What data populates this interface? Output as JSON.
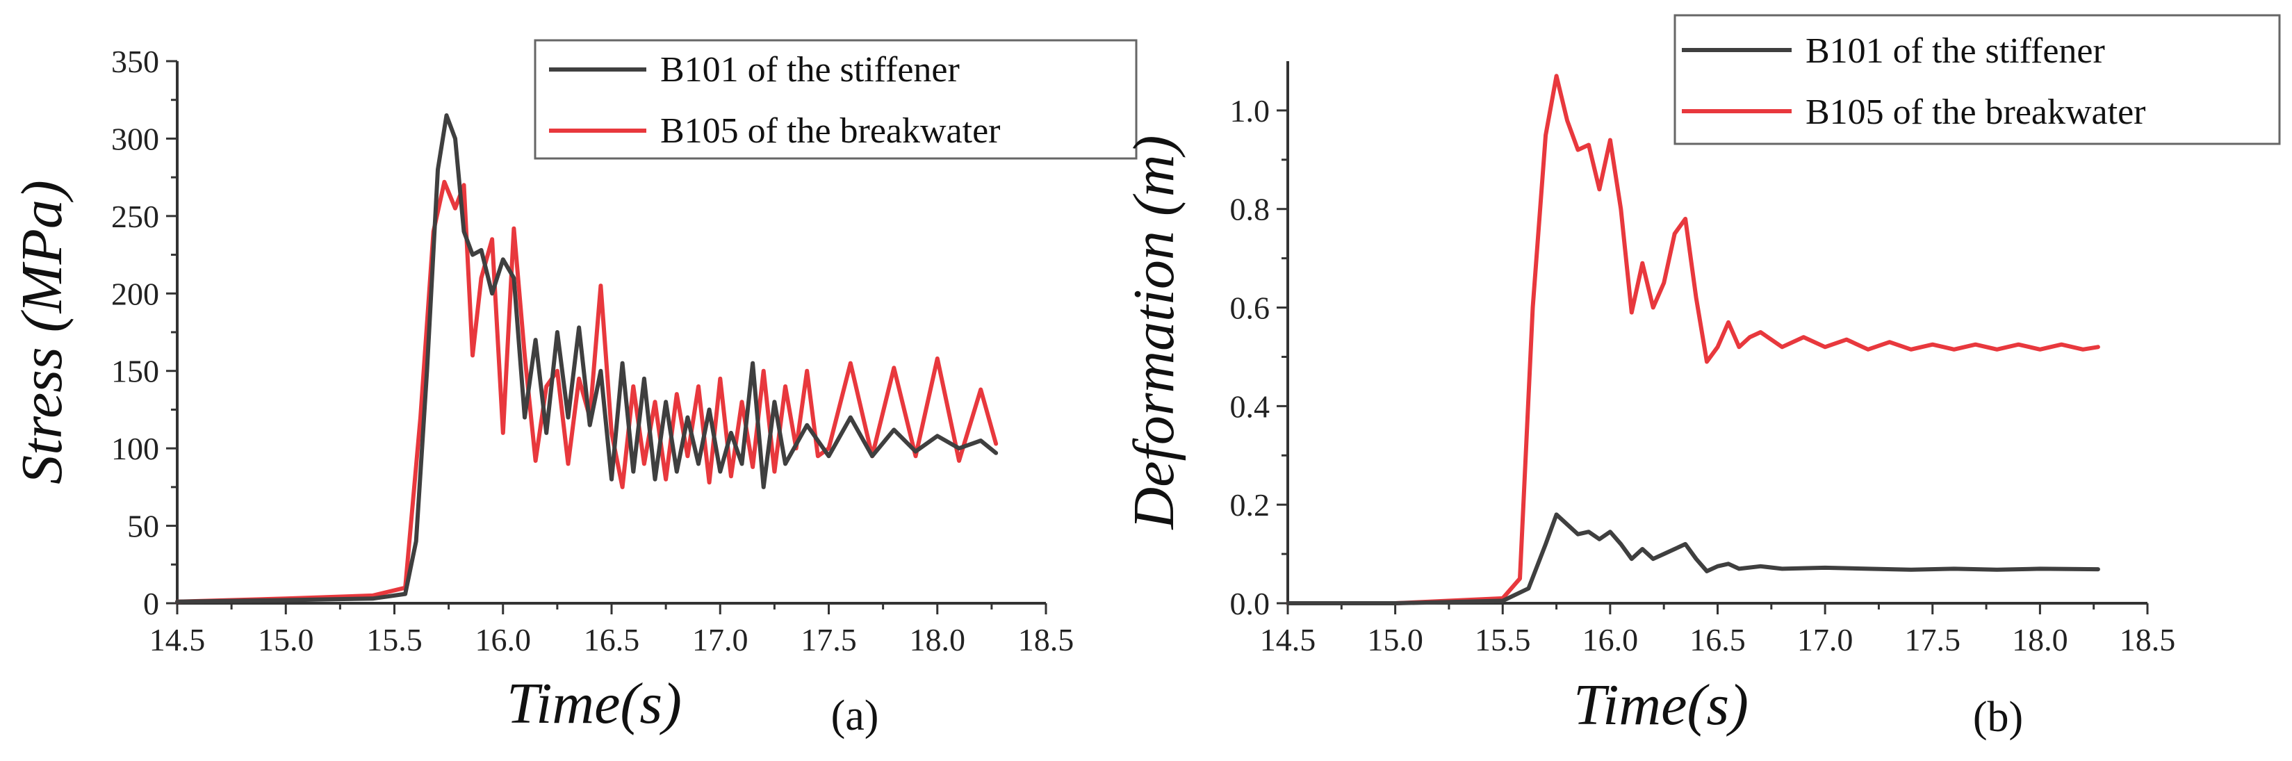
{
  "chart_data": [
    {
      "type": "line",
      "panel": "(a)",
      "title": "",
      "xlabel": "Time(s)",
      "ylabel": "Stress (MPa)",
      "xlim": [
        14.5,
        18.5
      ],
      "ylim": [
        0,
        350
      ],
      "xticks": [
        "14.5",
        "15.0",
        "15.5",
        "16.0",
        "16.5",
        "17.0",
        "17.5",
        "18.0",
        "18.5"
      ],
      "yticks": [
        "0",
        "50",
        "100",
        "150",
        "200",
        "250",
        "300",
        "350"
      ],
      "legend_position": "top-right",
      "series": [
        {
          "name": "B101 of the stiffener",
          "color": "#3f3f3f",
          "x": [
            14.5,
            15.0,
            15.4,
            15.55,
            15.6,
            15.65,
            15.7,
            15.74,
            15.78,
            15.82,
            15.86,
            15.9,
            15.95,
            16.0,
            16.05,
            16.1,
            16.15,
            16.2,
            16.25,
            16.3,
            16.35,
            16.4,
            16.45,
            16.5,
            16.55,
            16.6,
            16.65,
            16.7,
            16.75,
            16.8,
            16.85,
            16.9,
            16.95,
            17.0,
            17.05,
            17.1,
            17.15,
            17.2,
            17.25,
            17.3,
            17.4,
            17.5,
            17.6,
            17.7,
            17.8,
            17.9,
            18.0,
            18.1,
            18.2,
            18.27
          ],
          "y": [
            1,
            2,
            3,
            6,
            40,
            150,
            280,
            315,
            300,
            240,
            225,
            228,
            200,
            222,
            210,
            120,
            170,
            110,
            175,
            120,
            178,
            115,
            150,
            80,
            155,
            85,
            145,
            80,
            130,
            85,
            120,
            90,
            125,
            85,
            110,
            90,
            155,
            75,
            130,
            90,
            115,
            95,
            120,
            95,
            112,
            98,
            108,
            100,
            105,
            97
          ]
        },
        {
          "name": "B105 of the breakwater",
          "color": "#e8383d",
          "x": [
            14.5,
            15.0,
            15.4,
            15.55,
            15.62,
            15.68,
            15.73,
            15.78,
            15.82,
            15.86,
            15.9,
            15.95,
            16.0,
            16.05,
            16.1,
            16.15,
            16.2,
            16.25,
            16.3,
            16.35,
            16.4,
            16.45,
            16.5,
            16.55,
            16.6,
            16.65,
            16.7,
            16.75,
            16.8,
            16.85,
            16.9,
            16.95,
            17.0,
            17.05,
            17.1,
            17.15,
            17.2,
            17.25,
            17.3,
            17.35,
            17.4,
            17.45,
            17.5,
            17.6,
            17.7,
            17.8,
            17.9,
            18.0,
            18.1,
            18.2,
            18.27
          ],
          "y": [
            1,
            3,
            5,
            10,
            120,
            240,
            272,
            255,
            270,
            160,
            210,
            235,
            110,
            242,
            160,
            92,
            140,
            150,
            90,
            145,
            120,
            205,
            110,
            75,
            140,
            90,
            130,
            80,
            135,
            95,
            140,
            78,
            145,
            82,
            130,
            88,
            150,
            85,
            140,
            100,
            150,
            95,
            100,
            155,
            95,
            152,
            95,
            158,
            92,
            138,
            103
          ]
        }
      ]
    },
    {
      "type": "line",
      "panel": "(b)",
      "title": "",
      "xlabel": "Time(s)",
      "ylabel": "Deformation (m)",
      "xlim": [
        14.5,
        18.5
      ],
      "ylim": [
        0,
        1.1
      ],
      "xticks": [
        "14.5",
        "15.0",
        "15.5",
        "16.0",
        "16.5",
        "17.0",
        "17.5",
        "18.0",
        "18.5"
      ],
      "yticks": [
        "0.0",
        "0.2",
        "0.4",
        "0.6",
        "0.8",
        "1.0"
      ],
      "legend_position": "top-right",
      "series": [
        {
          "name": "B101 of the stiffener",
          "color": "#3f3f3f",
          "x": [
            14.5,
            15.0,
            15.5,
            15.62,
            15.7,
            15.75,
            15.8,
            15.85,
            15.9,
            15.95,
            16.0,
            16.05,
            16.1,
            16.15,
            16.2,
            16.25,
            16.3,
            16.35,
            16.4,
            16.45,
            16.5,
            16.55,
            16.6,
            16.7,
            16.8,
            17.0,
            17.2,
            17.4,
            17.6,
            17.8,
            18.0,
            18.27
          ],
          "y": [
            0,
            0,
            0.005,
            0.03,
            0.12,
            0.18,
            0.16,
            0.14,
            0.145,
            0.13,
            0.145,
            0.12,
            0.09,
            0.11,
            0.09,
            0.1,
            0.11,
            0.12,
            0.09,
            0.065,
            0.075,
            0.08,
            0.07,
            0.075,
            0.07,
            0.072,
            0.07,
            0.068,
            0.07,
            0.068,
            0.07,
            0.069
          ]
        },
        {
          "name": "B105 of the breakwater",
          "color": "#e8383d",
          "x": [
            14.5,
            15.0,
            15.5,
            15.58,
            15.64,
            15.7,
            15.75,
            15.8,
            15.85,
            15.9,
            15.95,
            16.0,
            16.05,
            16.1,
            16.15,
            16.2,
            16.25,
            16.3,
            16.35,
            16.4,
            16.45,
            16.5,
            16.55,
            16.6,
            16.65,
            16.7,
            16.8,
            16.9,
            17.0,
            17.1,
            17.2,
            17.3,
            17.4,
            17.5,
            17.6,
            17.7,
            17.8,
            17.9,
            18.0,
            18.1,
            18.2,
            18.27
          ],
          "y": [
            0,
            0,
            0.01,
            0.05,
            0.6,
            0.95,
            1.07,
            0.98,
            0.92,
            0.93,
            0.84,
            0.94,
            0.8,
            0.59,
            0.69,
            0.6,
            0.65,
            0.75,
            0.78,
            0.62,
            0.49,
            0.52,
            0.57,
            0.52,
            0.54,
            0.55,
            0.52,
            0.54,
            0.52,
            0.535,
            0.515,
            0.53,
            0.515,
            0.525,
            0.515,
            0.525,
            0.515,
            0.525,
            0.515,
            0.525,
            0.515,
            0.52
          ]
        }
      ]
    }
  ]
}
